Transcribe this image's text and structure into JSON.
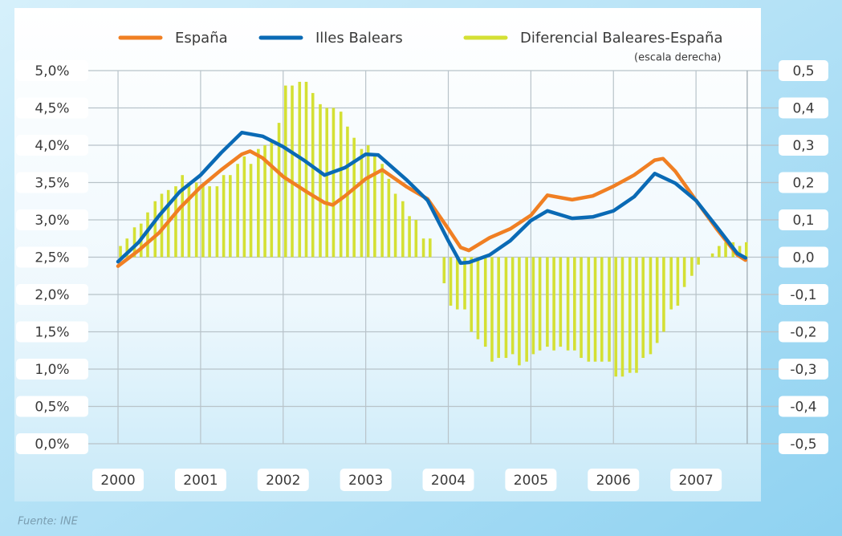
{
  "chart_data": {
    "type": "line",
    "source": "Fuente: INE",
    "xlim": [
      1999.88,
      2007.62
    ],
    "xticks": [
      2000,
      2001,
      2002,
      2003,
      2004,
      2005,
      2006,
      2007
    ],
    "ylim": [
      0,
      5
    ],
    "yticks": [
      {
        "value": 0,
        "label": "0,0%"
      },
      {
        "value": 0.5,
        "label": "0,5%"
      },
      {
        "value": 1,
        "label": "1,0%"
      },
      {
        "value": 1.5,
        "label": "1,5%"
      },
      {
        "value": 2,
        "label": "2,0%"
      },
      {
        "value": 2.5,
        "label": "2,5%"
      },
      {
        "value": 3,
        "label": "3,0%"
      },
      {
        "value": 3.5,
        "label": "3,5%"
      },
      {
        "value": 4,
        "label": "4,0%"
      },
      {
        "value": 4.5,
        "label": "4,5%"
      },
      {
        "value": 5,
        "label": "5,0%"
      }
    ],
    "y2lim": [
      -0.5,
      0.5
    ],
    "y2ticks": [
      {
        "value": -0.5,
        "label": "-0,5"
      },
      {
        "value": -0.4,
        "label": "-0,4"
      },
      {
        "value": -0.3,
        "label": "-0,3"
      },
      {
        "value": -0.2,
        "label": "-0,2"
      },
      {
        "value": -0.1,
        "label": "-0,1"
      },
      {
        "value": 0,
        "label": "0,0"
      },
      {
        "value": 0.1,
        "label": "0,1"
      },
      {
        "value": 0.2,
        "label": "0,2"
      },
      {
        "value": 0.3,
        "label": "0,3"
      },
      {
        "value": 0.4,
        "label": "0,4"
      },
      {
        "value": 0.5,
        "label": "0,5"
      }
    ],
    "grid": true,
    "series": [
      {
        "name": "España",
        "color": "#f07f23",
        "kind": "line",
        "x": [
          2000,
          2000.25,
          2000.5,
          2000.75,
          2001,
          2001.25,
          2001.5,
          2001.6,
          2001.75,
          2002,
          2002.25,
          2002.5,
          2002.6,
          2002.75,
          2003,
          2003.2,
          2003.5,
          2003.75,
          2004,
          2004.15,
          2004.25,
          2004.5,
          2004.75,
          2005,
          2005.2,
          2005.5,
          2005.75,
          2006,
          2006.25,
          2006.5,
          2006.6,
          2006.75,
          2007,
          2007.25,
          2007.5,
          2007.6
        ],
        "values": [
          2.38,
          2.59,
          2.83,
          3.16,
          3.44,
          3.67,
          3.88,
          3.92,
          3.83,
          3.58,
          3.4,
          3.23,
          3.2,
          3.32,
          3.55,
          3.67,
          3.44,
          3.28,
          2.88,
          2.63,
          2.59,
          2.76,
          2.88,
          3.06,
          3.33,
          3.27,
          3.32,
          3.45,
          3.6,
          3.8,
          3.82,
          3.65,
          3.26,
          2.88,
          2.53,
          2.46
        ]
      },
      {
        "name": "Illes Balears",
        "color": "#0a6ab5",
        "kind": "line",
        "x": [
          2000,
          2000.25,
          2000.5,
          2000.75,
          2001,
          2001.25,
          2001.5,
          2001.75,
          2002,
          2002.25,
          2002.5,
          2002.75,
          2003,
          2003.15,
          2003.5,
          2003.75,
          2004,
          2004.15,
          2004.25,
          2004.5,
          2004.75,
          2005,
          2005.2,
          2005.5,
          2005.75,
          2006,
          2006.25,
          2006.5,
          2006.75,
          2007,
          2007.25,
          2007.5,
          2007.6
        ],
        "values": [
          2.44,
          2.7,
          3.06,
          3.38,
          3.6,
          3.9,
          4.17,
          4.12,
          3.98,
          3.8,
          3.6,
          3.7,
          3.88,
          3.87,
          3.53,
          3.26,
          2.72,
          2.42,
          2.43,
          2.53,
          2.72,
          2.99,
          3.12,
          3.02,
          3.04,
          3.12,
          3.31,
          3.62,
          3.49,
          3.26,
          2.91,
          2.55,
          2.49
        ]
      },
      {
        "name": "Diferencial Baleares-España",
        "note": "(escala derecha)",
        "color": "#d4e034",
        "kind": "bar",
        "axis": "y2",
        "x": [
          2000,
          2000.08,
          2000.17,
          2000.25,
          2000.33,
          2000.42,
          2000.5,
          2000.58,
          2000.67,
          2000.75,
          2000.83,
          2000.92,
          2001,
          2001.08,
          2001.17,
          2001.25,
          2001.33,
          2001.42,
          2001.5,
          2001.58,
          2001.67,
          2001.75,
          2001.83,
          2001.92,
          2002,
          2002.08,
          2002.17,
          2002.25,
          2002.33,
          2002.42,
          2002.5,
          2002.58,
          2002.67,
          2002.75,
          2002.83,
          2002.92,
          2003,
          2003.08,
          2003.17,
          2003.25,
          2003.33,
          2003.42,
          2003.5,
          2003.58,
          2003.67,
          2003.75,
          2003.83,
          2003.92,
          2004,
          2004.08,
          2004.17,
          2004.25,
          2004.33,
          2004.42,
          2004.5,
          2004.58,
          2004.67,
          2004.75,
          2004.83,
          2004.92,
          2005,
          2005.08,
          2005.17,
          2005.25,
          2005.33,
          2005.42,
          2005.5,
          2005.58,
          2005.67,
          2005.75,
          2005.83,
          2005.92,
          2006,
          2006.08,
          2006.17,
          2006.25,
          2006.33,
          2006.42,
          2006.5,
          2006.58,
          2006.67,
          2006.75,
          2006.83,
          2006.92,
          2007,
          2007.08,
          2007.17,
          2007.25,
          2007.33,
          2007.42,
          2007.5,
          2007.58
        ],
        "values": [
          0.03,
          0.05,
          0.08,
          0.09,
          0.12,
          0.15,
          0.17,
          0.18,
          0.19,
          0.22,
          0.2,
          0.2,
          0.19,
          0.19,
          0.19,
          0.22,
          0.22,
          0.25,
          0.27,
          0.25,
          0.29,
          0.3,
          0.31,
          0.36,
          0.46,
          0.46,
          0.47,
          0.47,
          0.44,
          0.41,
          0.4,
          0.4,
          0.39,
          0.35,
          0.32,
          0.29,
          0.3,
          0.27,
          0.25,
          0.21,
          0.17,
          0.15,
          0.11,
          0.1,
          0.05,
          0.05,
          0,
          -0.07,
          -0.13,
          -0.14,
          -0.14,
          -0.2,
          -0.22,
          -0.24,
          -0.28,
          -0.27,
          -0.27,
          -0.26,
          -0.29,
          -0.28,
          -0.26,
          -0.25,
          -0.24,
          -0.25,
          -0.24,
          -0.25,
          -0.25,
          -0.27,
          -0.28,
          -0.28,
          -0.28,
          -0.28,
          -0.32,
          -0.32,
          -0.31,
          -0.31,
          -0.27,
          -0.26,
          -0.23,
          -0.2,
          -0.14,
          -0.13,
          -0.08,
          -0.05,
          -0.02,
          0,
          0.01,
          0.03,
          0.04,
          0.04,
          0.03,
          0.04
        ]
      }
    ]
  }
}
